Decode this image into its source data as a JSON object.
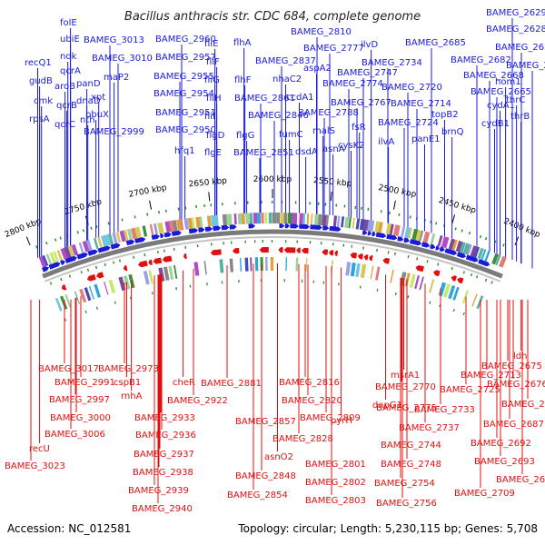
{
  "title": "Bacillus anthracis str. CDC 684, complete genome",
  "footer": {
    "accession": "Accession: NC_012581",
    "summary": "Topology: circular; Length: 5,230,115 bp; Genes: 5,708"
  },
  "colors": {
    "forward": "#1a1adc",
    "reverse": "#e01010",
    "backbone": "#808080",
    "tick_marker": "#2e8b2e"
  },
  "ticks": [
    "2800 kbp",
    "2750 kbp",
    "2700 kbp",
    "2650 kbp",
    "2600 kbp",
    "2550 kbp",
    "2500 kbp",
    "2450 kbp",
    "2400 kbp"
  ],
  "top_labels": [
    "BAMEG_2629",
    "BAMEG_2628",
    "BAMEG_2627",
    "BAMEG_2624",
    "hom1",
    "thrC",
    "thrB",
    "BAMEG_2665",
    "cydA1",
    "cydB1",
    "BAMEG_2668",
    "BAMEG_2682",
    "brnQ",
    "topB2",
    "BAMEG_2685",
    "BAMEG_2714",
    "BAMEG_2720",
    "panE1",
    "ilvA",
    "BAMEG_2724",
    "BAMEG_2734",
    "ilvD",
    "BAMEG_2747",
    "BAMEG_2767",
    "BAMEG_2774",
    "BAMEG_2777",
    "fsR",
    "cysK2",
    "asnA",
    "malS",
    "BAMEG_2788",
    "aspA2",
    "BAMEG_2810",
    "dsdA",
    "fumC",
    "ccdA1",
    "nhaC2",
    "BAMEG_2837",
    "BAMEG_2846",
    "BAMEG_2851",
    "BAMEG_2861",
    "flhA",
    "flhF",
    "flgG",
    "BAMEG_2950",
    "hfq1",
    "flgE",
    "flgD",
    "fliI",
    "fliH",
    "fliG",
    "fliF",
    "fliE",
    "BAMEG_2951",
    "BAMEG_2954",
    "BAMEG_2955",
    "BAMEG_2957",
    "BAMEG_2960",
    "BAMEG_2999",
    "pbuX",
    "xpt",
    "maP2",
    "BAMEG_3010",
    "BAMEG_3013",
    "nth",
    "dnaD",
    "panD",
    "aroB",
    "qcrA",
    "ndk",
    "ubiE",
    "folE",
    "qcrB",
    "qcrC",
    "recQ1",
    "gudB",
    "cmk",
    "rpsA"
  ],
  "bottom_labels": [
    "BAMEG_3017",
    "BAMEG_2991",
    "BAMEG_2997",
    "BAMEG_3000",
    "BAMEG_3006",
    "recU",
    "BAMEG_3023",
    "BAMEG_2973",
    "cspB1",
    "rnhA",
    "cheR",
    "BAMEG_2922",
    "BAMEG_2933",
    "BAMEG_2936",
    "BAMEG_2937",
    "BAMEG_2938",
    "BAMEG_2939",
    "BAMEG_2940",
    "BAMEG_2881",
    "BAMEG_2857",
    "BAMEG_2848",
    "BAMEG_2854",
    "BAMEG_2816",
    "BAMEG_2820",
    "BAMEG_2809",
    "BAMEG_2828",
    "asnO2",
    "BAMEG_2801",
    "BAMEG_2802",
    "BAMEG_2803",
    "pyrH",
    "BAMEG_2770",
    "dapG1",
    "BAMEG_2775",
    "msrA1",
    "BAMEG_2733",
    "BAMEG_2737",
    "BAMEG_2744",
    "BAMEG_2748",
    "BAMEG_2754",
    "BAMEG_2756",
    "BAMEG_2725",
    "BAMEG_2713",
    "BAMEG_2709",
    "BAMEG_2695",
    "BAMEG_2693",
    "BAMEG_2692",
    "BAMEG_2687",
    "BAMEG_2684",
    "BAMEG_2676",
    "BAMEG_2675",
    "ldh"
  ]
}
